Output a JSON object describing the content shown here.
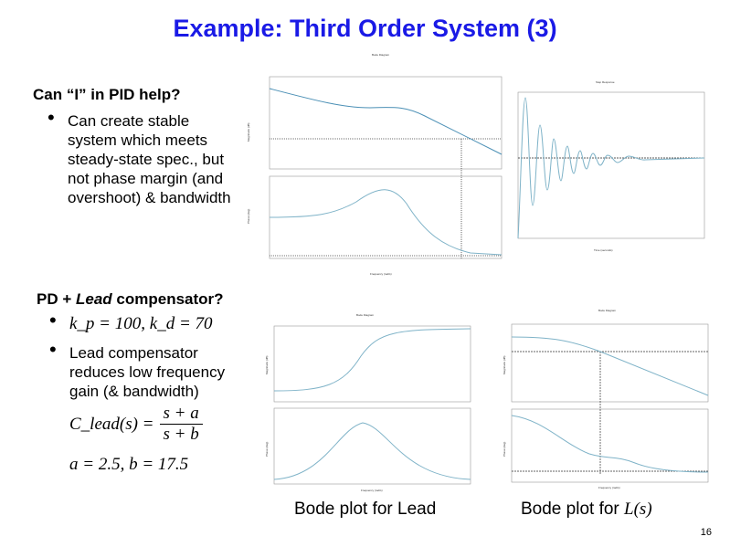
{
  "title": "Example: Third Order System (3)",
  "section1": {
    "heading": "Can “I” in PID help?",
    "bullets": [
      "Can create stable system which meets steady-state spec., but not phase margin (and overshoot) & bandwidth"
    ]
  },
  "section2": {
    "heading_prefix": "PD + ",
    "heading_italic": "Lead",
    "heading_suffix": " compensator?",
    "gains": "k_p = 100, k_d = 70",
    "bullet2": "Lead compensator reduces low frequency gain (& bandwidth)",
    "formula_lhs": "C_lead(s) =",
    "formula_num": "s + a",
    "formula_den": "s + b",
    "params": "a = 2.5, b = 17.5"
  },
  "plots": {
    "bode_title": "Bode Diagram",
    "step_title": "Step Response",
    "mag_label": "Magnitude (dB)",
    "phase_label": "Phase (deg)",
    "freq_label": "Frequency (rad/s)",
    "time_label": "Time (seconds)",
    "curve_color": "#7fb3c8"
  },
  "captions": {
    "lead": "Bode plot for Lead",
    "loop_prefix": "Bode plot for "
  },
  "page_number": "16"
}
